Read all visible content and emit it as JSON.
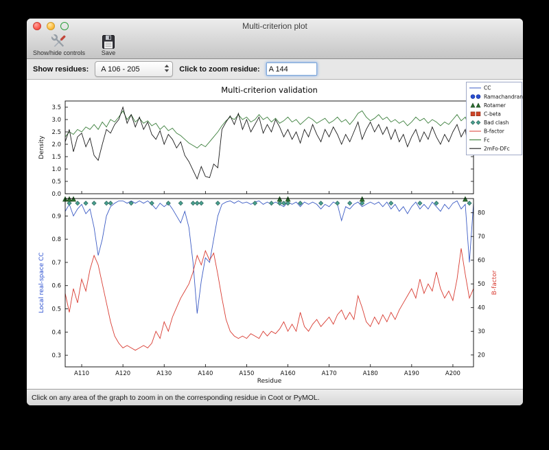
{
  "window": {
    "title": "Multi-criterion plot",
    "toolbar": {
      "show_hide_label": "Show/hide controls",
      "save_label": "Save"
    },
    "controls": {
      "show_residues_label": "Show residues:",
      "residue_range_value": "A 106 - 205",
      "zoom_label": "Click to zoom residue:",
      "zoom_value": "A 144"
    },
    "status_text": "Click on any area of the graph to zoom in on the corresponding residue in Coot or PyMOL."
  },
  "chart_data": {
    "type": "line",
    "title": "Multi-criterion validation",
    "x_range": [
      106,
      205
    ],
    "xlabel": "Residue",
    "xtick_values": [
      110,
      120,
      130,
      140,
      150,
      160,
      170,
      180,
      190,
      200
    ],
    "xtick_labels": [
      "A110",
      "A120",
      "A130",
      "A140",
      "A150",
      "A160",
      "A170",
      "A180",
      "A190",
      "A200"
    ],
    "legend": {
      "position": "top-right",
      "entries": [
        {
          "label": "CC",
          "marker": "line",
          "color": "#3b5bc4",
          "edge": "#24388a"
        },
        {
          "label": "Ramachandran",
          "marker": "circle",
          "color": "#2a4fd0",
          "edge": "#16309a"
        },
        {
          "label": "Rotamer",
          "marker": "triangle",
          "color": "#2d7031",
          "edge": "#17441b"
        },
        {
          "label": "C-beta",
          "marker": "square",
          "color": "#cf4427",
          "edge": "#8e2c17"
        },
        {
          "label": "Bad clash",
          "marker": "diamond",
          "color": "#49a08f",
          "edge": "#2c645a"
        },
        {
          "label": "B-factor",
          "marker": "line",
          "color": "#d83a30",
          "edge": "#9c241c"
        },
        {
          "label": "Fc",
          "marker": "line",
          "color": "#3c7f3c",
          "edge": "#265226"
        },
        {
          "label": "2mFo-DFc",
          "marker": "line",
          "color": "#1a1a1a",
          "edge": "#000000"
        }
      ]
    },
    "top_plot": {
      "ylabel": "Density",
      "ylim": [
        0,
        3.75
      ],
      "yticks": [
        0.0,
        0.5,
        1.0,
        1.5,
        2.0,
        2.5,
        3.0,
        3.5
      ],
      "series": [
        {
          "name": "Fc",
          "color": "#3c7f3c",
          "values": [
            2.3,
            2.5,
            2.4,
            2.6,
            2.5,
            2.7,
            2.6,
            2.8,
            2.6,
            2.9,
            2.7,
            3.0,
            2.9,
            3.1,
            3.35,
            3.0,
            3.2,
            2.9,
            3.05,
            2.85,
            2.95,
            2.75,
            2.85,
            2.6,
            2.75,
            2.55,
            2.65,
            2.45,
            2.35,
            2.2,
            2.05,
            1.95,
            1.85,
            2.0,
            1.9,
            2.1,
            2.3,
            2.5,
            2.75,
            2.95,
            3.1,
            3.0,
            3.2,
            3.0,
            3.1,
            2.9,
            3.0,
            3.2,
            3.0,
            3.1,
            2.9,
            3.05,
            2.85,
            2.95,
            3.1,
            2.9,
            3.0,
            2.8,
            2.95,
            3.1,
            3.0,
            2.85,
            2.95,
            3.05,
            2.85,
            2.95,
            3.1,
            2.9,
            3.0,
            2.8,
            3.0,
            3.25,
            3.35,
            3.1,
            2.95,
            3.05,
            3.2,
            3.0,
            3.1,
            2.9,
            3.0,
            2.85,
            2.95,
            2.75,
            2.9,
            3.1,
            2.95,
            3.05,
            2.85,
            3.0,
            2.9,
            2.75,
            2.9,
            2.8,
            3.0,
            3.2,
            2.95,
            3.1,
            2.65,
            2.9
          ]
        },
        {
          "name": "2mFo-DFc",
          "color": "#1a1a1a",
          "values": [
            2.1,
            2.6,
            1.7,
            2.3,
            2.45,
            1.9,
            2.25,
            1.55,
            1.35,
            2.0,
            2.6,
            2.45,
            2.8,
            3.0,
            3.5,
            2.85,
            3.2,
            2.7,
            3.1,
            2.6,
            2.9,
            2.4,
            2.2,
            2.55,
            2.0,
            2.4,
            2.2,
            1.85,
            2.1,
            1.55,
            1.3,
            0.95,
            0.6,
            1.1,
            0.7,
            0.65,
            1.2,
            1.05,
            2.6,
            2.9,
            3.15,
            2.8,
            3.25,
            2.6,
            3.0,
            2.5,
            2.8,
            3.1,
            2.45,
            2.8,
            2.5,
            3.0,
            2.7,
            2.3,
            2.6,
            2.2,
            2.5,
            2.05,
            2.6,
            2.3,
            2.8,
            2.4,
            2.1,
            2.6,
            2.3,
            2.7,
            2.4,
            2.0,
            2.4,
            2.1,
            2.5,
            2.9,
            2.2,
            2.6,
            2.9,
            2.5,
            2.8,
            2.4,
            2.7,
            2.2,
            2.6,
            2.1,
            2.4,
            1.9,
            2.3,
            2.6,
            2.1,
            2.5,
            2.2,
            2.7,
            2.3,
            2.0,
            2.4,
            2.1,
            2.5,
            2.8,
            2.3,
            2.6,
            1.6,
            2.4
          ]
        }
      ]
    },
    "bottom_plot": {
      "ylabel_left": "Local real-space CC",
      "ylabel_left_color": "#2a4fd0",
      "ylim_left": [
        0.25,
        0.975
      ],
      "yticks_left": [
        0.3,
        0.4,
        0.5,
        0.6,
        0.7,
        0.8,
        0.9
      ],
      "ylabel_right": "B-factor",
      "ylabel_right_color": "#d83a30",
      "ylim_right": [
        15,
        86
      ],
      "yticks_right": [
        20,
        30,
        40,
        50,
        60,
        70,
        80
      ],
      "series": [
        {
          "name": "CC",
          "axis": "left",
          "color": "#3b5bc4",
          "values": [
            0.92,
            0.95,
            0.9,
            0.93,
            0.95,
            0.91,
            0.93,
            0.85,
            0.73,
            0.8,
            0.9,
            0.94,
            0.955,
            0.965,
            0.965,
            0.955,
            0.965,
            0.955,
            0.965,
            0.955,
            0.965,
            0.95,
            0.93,
            0.955,
            0.94,
            0.955,
            0.93,
            0.9,
            0.87,
            0.92,
            0.85,
            0.7,
            0.48,
            0.62,
            0.72,
            0.7,
            0.8,
            0.9,
            0.95,
            0.96,
            0.965,
            0.955,
            0.965,
            0.955,
            0.96,
            0.95,
            0.96,
            0.965,
            0.95,
            0.96,
            0.95,
            0.96,
            0.95,
            0.94,
            0.96,
            0.95,
            0.96,
            0.94,
            0.96,
            0.95,
            0.96,
            0.95,
            0.93,
            0.95,
            0.94,
            0.96,
            0.95,
            0.88,
            0.94,
            0.93,
            0.95,
            0.96,
            0.94,
            0.95,
            0.96,
            0.95,
            0.96,
            0.94,
            0.96,
            0.93,
            0.95,
            0.92,
            0.94,
            0.91,
            0.94,
            0.96,
            0.93,
            0.95,
            0.93,
            0.96,
            0.94,
            0.92,
            0.95,
            0.93,
            0.955,
            0.965,
            0.93,
            0.95,
            0.7,
            0.955
          ]
        },
        {
          "name": "B-factor",
          "axis": "right",
          "color": "#d83a30",
          "values": [
            46,
            38,
            48,
            42,
            52,
            47,
            56,
            62,
            58,
            50,
            42,
            34,
            28,
            25,
            23,
            24,
            23,
            22,
            23,
            24,
            23,
            25,
            30,
            27,
            34,
            30,
            36,
            40,
            44,
            47,
            50,
            55,
            62,
            58,
            64,
            60,
            63,
            54,
            44,
            35,
            30,
            28,
            27,
            28,
            27,
            29,
            28,
            27,
            30,
            28,
            30,
            29,
            31,
            34,
            30,
            33,
            30,
            38,
            32,
            30,
            33,
            35,
            32,
            34,
            36,
            33,
            37,
            39,
            35,
            38,
            35,
            45,
            40,
            34,
            32,
            36,
            33,
            37,
            34,
            38,
            35,
            39,
            42,
            45,
            48,
            44,
            52,
            46,
            50,
            47,
            55,
            48,
            44,
            47,
            43,
            52,
            65,
            54,
            44,
            48
          ]
        }
      ],
      "markers": [
        {
          "name": "Bad clash",
          "shape": "diamond",
          "color": "#49a08f",
          "edge": "#2c645a",
          "y_value": 0.955,
          "residues": [
            107,
            109,
            111,
            113,
            116,
            117,
            122,
            127,
            131,
            134,
            137,
            138,
            139,
            143,
            152,
            156,
            158,
            159,
            160,
            163,
            168,
            172,
            175,
            178,
            185,
            192,
            196,
            204
          ]
        },
        {
          "name": "Rotamer",
          "shape": "triangle",
          "color": "#2d7031",
          "edge": "#17441b",
          "y_value": 0.973,
          "residues": [
            106,
            107,
            108,
            158,
            160,
            178,
            203
          ]
        },
        {
          "name": "C-beta",
          "shape": "square",
          "color": "#cf4427",
          "edge": "#8e2c17",
          "y_value": 0.94,
          "residues": []
        },
        {
          "name": "Ramachandran",
          "shape": "circle",
          "color": "#2a4fd0",
          "edge": "#16309a",
          "y_value": 0.96,
          "residues": []
        }
      ]
    }
  }
}
